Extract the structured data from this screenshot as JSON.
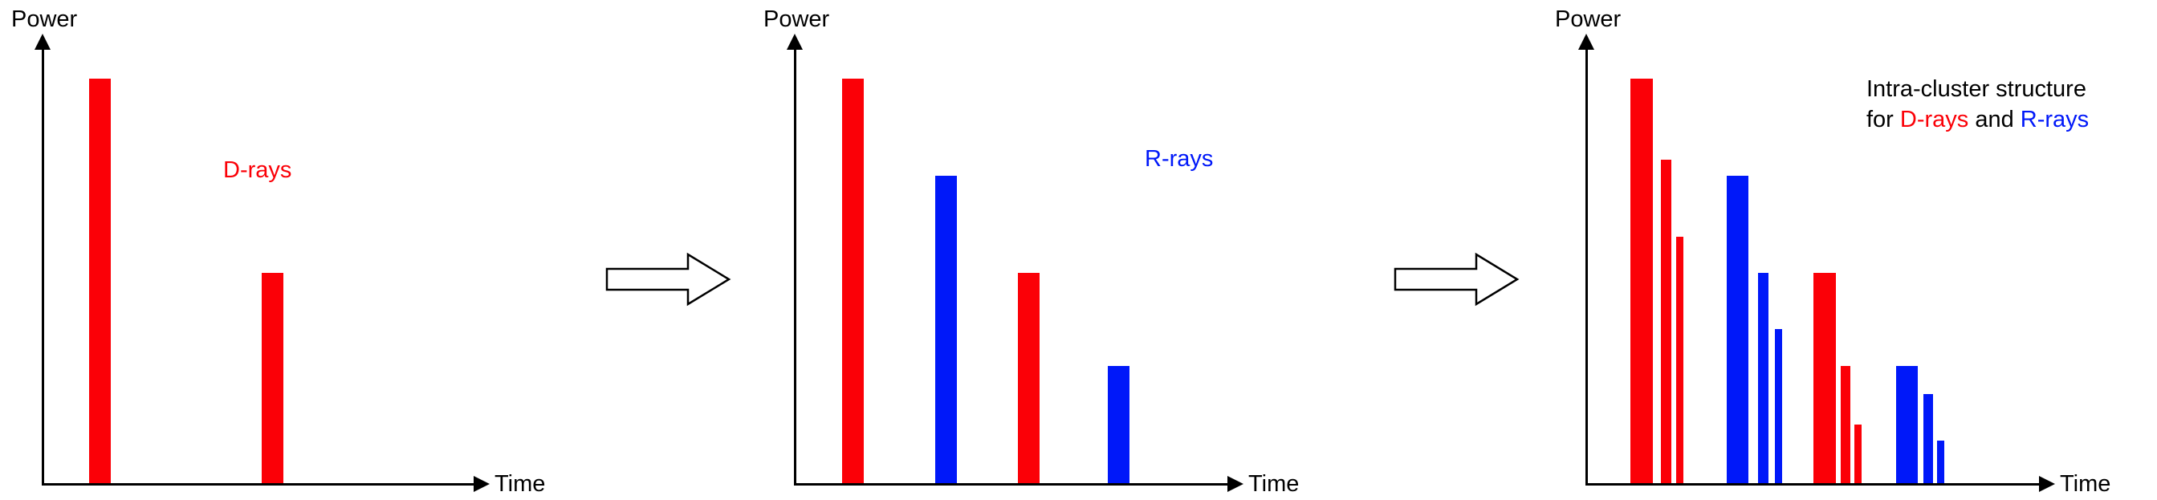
{
  "colors": {
    "d_rays": "#fb0007",
    "r_rays": "#0018f9",
    "axis": "#000000"
  },
  "panels": [
    {
      "name": "d-rays",
      "power_label": "Power",
      "time_label": "Time",
      "label": {
        "text": "D-rays",
        "color": "d_rays"
      },
      "bars": [
        {
          "series": "d_rays",
          "x": 59,
          "w": 27,
          "power": 1.0
        },
        {
          "series": "d_rays",
          "x": 274,
          "w": 27,
          "power": 0.52
        }
      ]
    },
    {
      "name": "r-rays",
      "power_label": "Power",
      "time_label": "Time",
      "label": {
        "text": "R-rays",
        "color": "r_rays"
      },
      "bars": [
        {
          "series": "d_rays",
          "x": 60,
          "w": 27,
          "power": 1.0
        },
        {
          "series": "r_rays",
          "x": 176,
          "w": 27,
          "power": 0.76
        },
        {
          "series": "d_rays",
          "x": 279,
          "w": 27,
          "power": 0.52
        },
        {
          "series": "r_rays",
          "x": 391,
          "w": 27,
          "power": 0.29
        }
      ]
    },
    {
      "name": "intra-cluster",
      "power_label": "Power",
      "time_label": "Time",
      "annotation": {
        "line1": "Intra-cluster structure",
        "line2": [
          {
            "text": "for ",
            "color": "axis"
          },
          {
            "text": "D-rays",
            "color": "d_rays"
          },
          {
            "text": " and ",
            "color": "axis"
          },
          {
            "text": "R-rays",
            "color": "r_rays"
          }
        ]
      },
      "bars": [
        {
          "series": "d_rays",
          "x": 56,
          "w": 28,
          "power": 1.0
        },
        {
          "series": "d_rays",
          "x": 94,
          "w": 13,
          "power": 0.8
        },
        {
          "series": "d_rays",
          "x": 113,
          "w": 9,
          "power": 0.61
        },
        {
          "series": "r_rays",
          "x": 176,
          "w": 27,
          "power": 0.76
        },
        {
          "series": "r_rays",
          "x": 215,
          "w": 13,
          "power": 0.52
        },
        {
          "series": "r_rays",
          "x": 236,
          "w": 9,
          "power": 0.38
        },
        {
          "series": "d_rays",
          "x": 284,
          "w": 28,
          "power": 0.52
        },
        {
          "series": "d_rays",
          "x": 318,
          "w": 12,
          "power": 0.29
        },
        {
          "series": "d_rays",
          "x": 335,
          "w": 9,
          "power": 0.145
        },
        {
          "series": "r_rays",
          "x": 387,
          "w": 27,
          "power": 0.29
        },
        {
          "series": "r_rays",
          "x": 421,
          "w": 12,
          "power": 0.22
        },
        {
          "series": "r_rays",
          "x": 438,
          "w": 9,
          "power": 0.105
        }
      ]
    }
  ]
}
